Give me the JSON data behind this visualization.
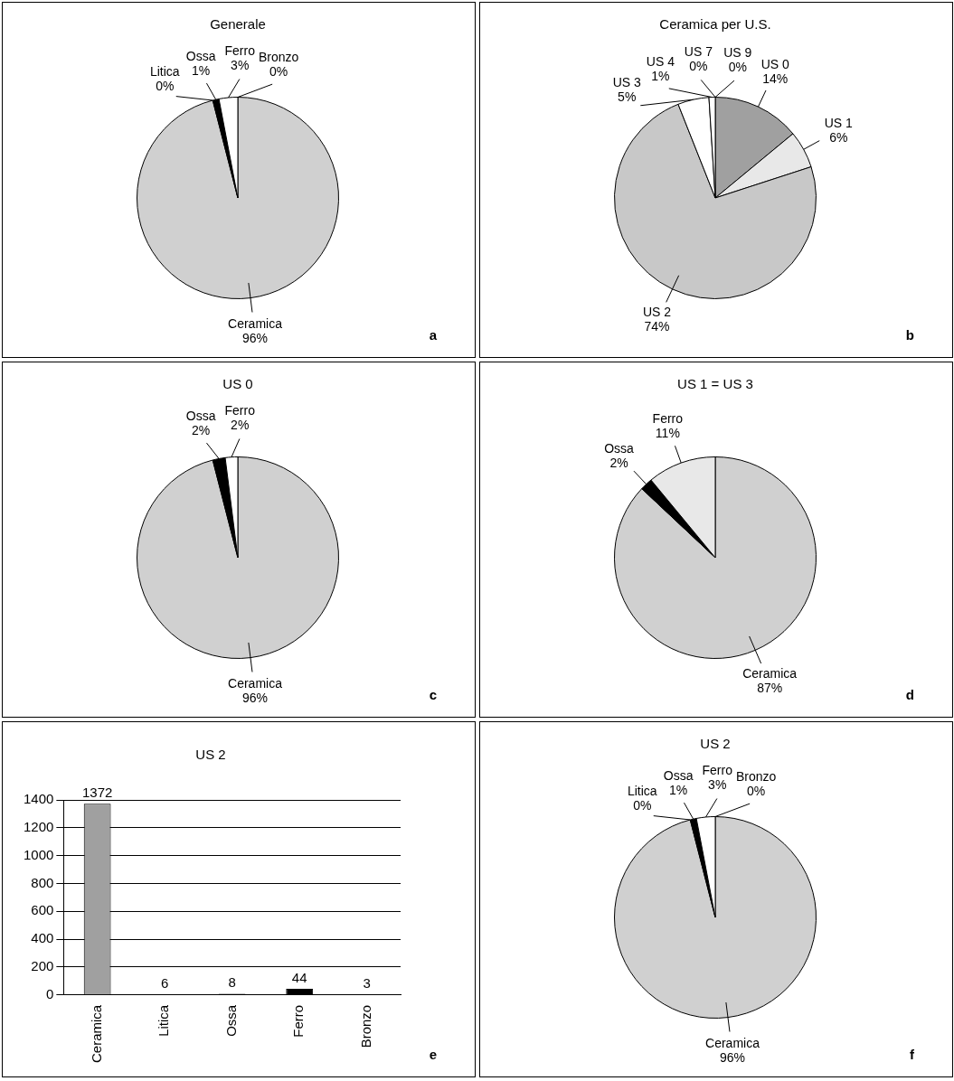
{
  "chart_data": [
    {
      "type": "pie",
      "title": "Generale",
      "categories": [
        "Ceramica",
        "Litica",
        "Ossa",
        "Ferro",
        "Bronzo"
      ],
      "values": [
        96,
        0,
        1,
        3,
        0
      ],
      "value_labels": [
        "96%",
        "0%",
        "1%",
        "3%",
        "0%"
      ],
      "colors": [
        "#d0d0d0",
        "#808080",
        "#000000",
        "#ffffff",
        "#ffffff"
      ],
      "annotations": [
        "a"
      ]
    },
    {
      "type": "pie",
      "title": "Ceramica per U.S.",
      "categories": [
        "US 0",
        "US 1",
        "US 2",
        "US 3",
        "US 4",
        "US 7",
        "US 9"
      ],
      "values": [
        14,
        6,
        74,
        5,
        1,
        0,
        0
      ],
      "value_labels": [
        "14%",
        "6%",
        "74%",
        "5%",
        "1%",
        "0%",
        "0%"
      ],
      "colors": [
        "#a0a0a0",
        "#e8e8e8",
        "#c8c8c8",
        "#ffffff",
        "#ffffff",
        "#000000",
        "#ffffff"
      ],
      "annotations": [
        "b"
      ]
    },
    {
      "type": "pie",
      "title": "US 0",
      "categories": [
        "Ceramica",
        "Ossa",
        "Ferro"
      ],
      "values": [
        96,
        2,
        2
      ],
      "value_labels": [
        "96%",
        "2%",
        "2%"
      ],
      "colors": [
        "#d0d0d0",
        "#000000",
        "#ffffff"
      ],
      "annotations": [
        "c"
      ]
    },
    {
      "type": "pie",
      "title": "US 1 = US 3",
      "categories": [
        "Ceramica",
        "Ossa",
        "Ferro"
      ],
      "values": [
        87,
        2,
        11
      ],
      "value_labels": [
        "87%",
        "2%",
        "11%"
      ],
      "colors": [
        "#d0d0d0",
        "#000000",
        "#e8e8e8"
      ],
      "annotations": [
        "d"
      ]
    },
    {
      "type": "bar",
      "title": "US 2",
      "categories": [
        "Ceramica",
        "Litica",
        "Ossa",
        "Ferro",
        "Bronzo"
      ],
      "values": [
        1372,
        6,
        8,
        44,
        3
      ],
      "colors": [
        "#a0a0a0",
        "#000000",
        "#000000",
        "#000000",
        "#000000"
      ],
      "ylim": [
        0,
        1400
      ],
      "yticks": [
        0,
        200,
        400,
        600,
        800,
        1000,
        1200,
        1400
      ],
      "grid": "y",
      "data_labels": true,
      "annotations": [
        "e"
      ]
    },
    {
      "type": "pie",
      "title": "US 2",
      "categories": [
        "Ceramica",
        "Litica",
        "Ossa",
        "Ferro",
        "Bronzo"
      ],
      "values": [
        96,
        0,
        1,
        3,
        0
      ],
      "value_labels": [
        "96%",
        "0%",
        "1%",
        "3%",
        "0%"
      ],
      "colors": [
        "#d0d0d0",
        "#808080",
        "#000000",
        "#ffffff",
        "#ffffff"
      ],
      "annotations": [
        "f"
      ]
    }
  ]
}
